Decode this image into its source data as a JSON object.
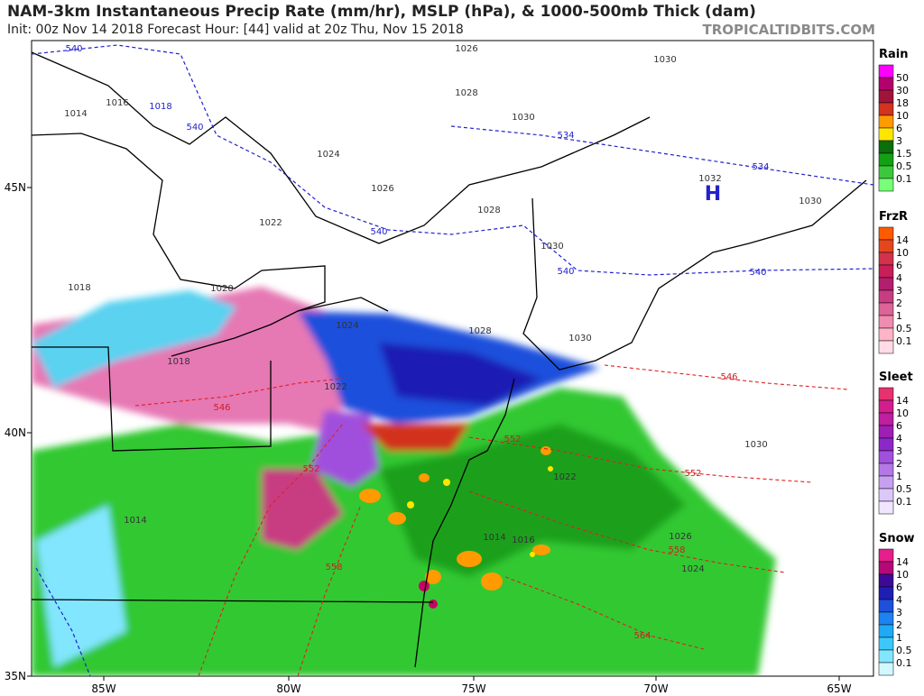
{
  "header": {
    "title": "NAM-3km Instantaneous Precip Rate (mm/hr), MSLP (hPa), & 1000-500mb Thick (dam)",
    "subtitle": "Init: 00z Nov 14 2018   Forecast Hour: [44]   valid at 20z Thu, Nov 15 2018",
    "watermark": "TROPICALTIDBITS.COM"
  },
  "axes": {
    "lon_labels": [
      "85W",
      "80W",
      "75W",
      "70W",
      "65W"
    ],
    "lat_labels": [
      "45N",
      "40N",
      "35N"
    ]
  },
  "legends": [
    {
      "title": "Rain",
      "labels": [
        "50",
        "30",
        "18",
        "10",
        "6",
        "3",
        "1.5",
        "0.5",
        "0.1"
      ],
      "colors": [
        "#ff00ff",
        "#b4006e",
        "#a0143c",
        "#d2321e",
        "#ff9b00",
        "#ffe600",
        "#0a6e0a",
        "#14a014",
        "#3cc83c",
        "#78ff78"
      ]
    },
    {
      "title": "FrzR",
      "labels": [
        "14",
        "10",
        "6",
        "4",
        "3",
        "2",
        "1",
        "0.5",
        "0.1"
      ],
      "colors": [
        "#ff5a00",
        "#e6461e",
        "#d2324b",
        "#c81e5a",
        "#b41e6e",
        "#c83c82",
        "#dc6496",
        "#f08caf",
        "#ffb4c8",
        "#ffdce6"
      ]
    },
    {
      "title": "Sleet",
      "labels": [
        "14",
        "10",
        "6",
        "4",
        "3",
        "2",
        "1",
        "0.5",
        "0.1"
      ],
      "colors": [
        "#e6326e",
        "#d21e8c",
        "#be1ea0",
        "#a01eb4",
        "#8c28c8",
        "#a050dc",
        "#b478e6",
        "#c8a0f0",
        "#dcc8f8",
        "#f0e6ff"
      ]
    },
    {
      "title": "Snow",
      "labels": [
        "14",
        "10",
        "6",
        "4",
        "3",
        "2",
        "1",
        "0.5",
        "0.1"
      ],
      "colors": [
        "#e61e8c",
        "#b40a78",
        "#3c0a96",
        "#1e1eb4",
        "#1e50dc",
        "#1e82f0",
        "#1eaaf5",
        "#3cc8fa",
        "#82e6ff",
        "#d2f8ff"
      ]
    }
  ],
  "map_labels": [
    "540",
    "1026",
    "1030",
    "1016",
    "1018",
    "1014",
    "1028",
    "1030",
    "534",
    "1024",
    "1026",
    "540",
    "1032",
    "H",
    "534",
    "1030",
    "1022",
    "1028",
    "540",
    "1030",
    "540",
    "540",
    "1018",
    "1020",
    "1024",
    "1028",
    "1030",
    "546",
    "1022",
    "1018",
    "546",
    "1030",
    "552",
    "552",
    "1022",
    "1026",
    "558",
    "1024",
    "564",
    "1014",
    "1014",
    "1016",
    "558",
    "552"
  ]
}
